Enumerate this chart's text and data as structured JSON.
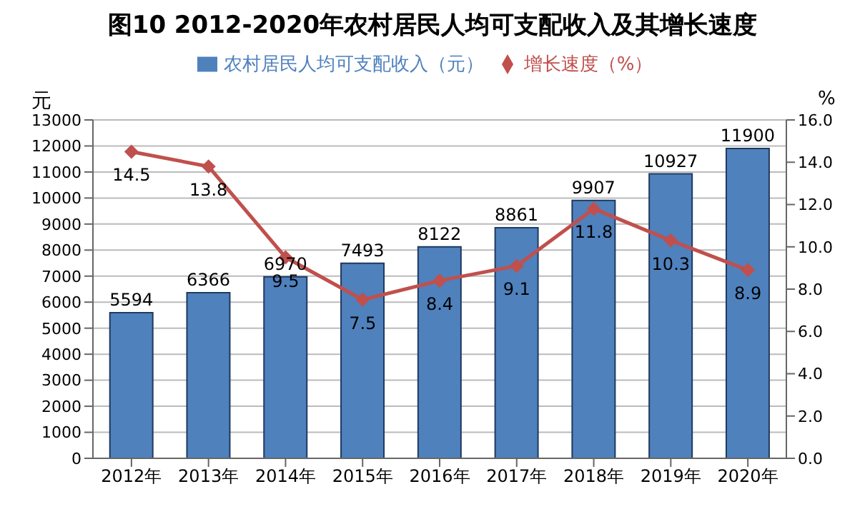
{
  "chart_data": {
    "type": "bar",
    "title": "图10  2012-2020年农村居民人均可支配收入及其增长速度",
    "categories": [
      "2012年",
      "2013年",
      "2014年",
      "2015年",
      "2016年",
      "2017年",
      "2018年",
      "2019年",
      "2020年"
    ],
    "series": [
      {
        "name": "农村居民人均可支配收入（元）",
        "color": "#4f81bd",
        "values": [
          5594,
          6366,
          6970,
          7493,
          8122,
          8861,
          9907,
          10927,
          11900
        ]
      },
      {
        "name": "增长速度（%）",
        "type": "line",
        "axis": "y2",
        "color": "#c0504d",
        "values": [
          14.5,
          13.8,
          9.5,
          7.5,
          8.4,
          9.1,
          11.8,
          10.3,
          8.9
        ]
      }
    ],
    "ylabel": "元",
    "y2label": "%",
    "ylim": [
      0,
      13000
    ],
    "yticks": [
      0,
      1000,
      2000,
      3000,
      4000,
      5000,
      6000,
      7000,
      8000,
      9000,
      10000,
      11000,
      12000,
      13000
    ],
    "y2lim": [
      0,
      16
    ],
    "y2ticks": [
      {
        "value": 0,
        "label": "0.0"
      },
      {
        "value": 2,
        "label": "2.0"
      },
      {
        "value": 4,
        "label": "4.0"
      },
      {
        "value": 6,
        "label": "6.0"
      },
      {
        "value": 8,
        "label": "8.0"
      },
      {
        "value": 10,
        "label": "10.0"
      },
      {
        "value": 12,
        "label": "12.0"
      },
      {
        "value": 14,
        "label": "14.0"
      },
      {
        "value": 16,
        "label": "16.0"
      }
    ],
    "grid": "y",
    "legend": "top",
    "marker": "diamond",
    "line_style": "solid",
    "data_labels": true
  }
}
